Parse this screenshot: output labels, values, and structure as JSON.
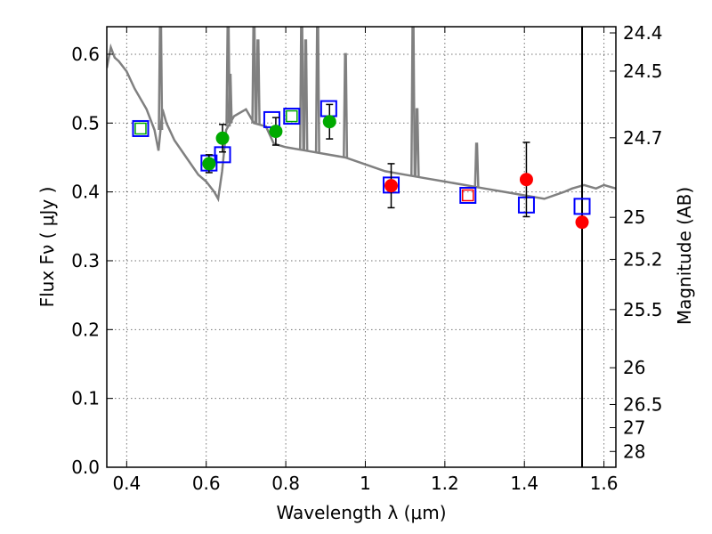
{
  "chart_data": {
    "type": "scatter",
    "xlabel": "Wavelength  λ (μm)",
    "ylabel": "Flux  Fν  ( μJy )",
    "y2label": "Magnitude (AB)",
    "xlim": [
      0.35,
      1.63
    ],
    "ylim": [
      0.0,
      0.64
    ],
    "grid": true,
    "x_ticks": [
      "0.4",
      "0.6",
      "0.8",
      "1",
      "1.2",
      "1.4",
      "1.6"
    ],
    "y_ticks": [
      "0.0",
      "0.1",
      "0.2",
      "0.3",
      "0.4",
      "0.5",
      "0.6"
    ],
    "magnitude_ticks": [
      "24.4",
      "24.5",
      "24.7",
      "25",
      "25.2",
      "25.5",
      "26",
      "26.5",
      "27",
      "28"
    ],
    "vertical_line_x": 1.545,
    "colors": {
      "sed_model": "#808080",
      "model_box": "#0000ff",
      "green_point": "#00aa00",
      "red_point": "#ff0000",
      "errorbar": "#000000"
    },
    "model_sed": {
      "name": "",
      "x": [
        0.35,
        0.36,
        0.37,
        0.38,
        0.4,
        0.42,
        0.45,
        0.47,
        0.48,
        0.49,
        0.5,
        0.52,
        0.55,
        0.58,
        0.6,
        0.62,
        0.63,
        0.64,
        0.65,
        0.67,
        0.7,
        0.72,
        0.75,
        0.77,
        0.8,
        0.85,
        0.9,
        0.95,
        1.0,
        1.05,
        1.1,
        1.15,
        1.2,
        1.25,
        1.3,
        1.35,
        1.4,
        1.45,
        1.5,
        1.52,
        1.55,
        1.58,
        1.6,
        1.63
      ],
      "values": [
        0.58,
        0.61,
        0.595,
        0.59,
        0.575,
        0.55,
        0.52,
        0.49,
        0.46,
        0.52,
        0.5,
        0.475,
        0.45,
        0.425,
        0.415,
        0.4,
        0.39,
        0.43,
        0.49,
        0.51,
        0.52,
        0.5,
        0.495,
        0.47,
        0.465,
        0.46,
        0.455,
        0.45,
        0.44,
        0.43,
        0.425,
        0.42,
        0.415,
        0.41,
        0.405,
        0.4,
        0.395,
        0.39,
        0.4,
        0.405,
        0.41,
        0.405,
        0.41,
        0.405
      ]
    },
    "emission_spikes": [
      {
        "x": 0.485,
        "peak": 0.64
      },
      {
        "x": 0.655,
        "peak": 0.64
      },
      {
        "x": 0.66,
        "peak": 0.55
      },
      {
        "x": 0.72,
        "peak": 0.64
      },
      {
        "x": 0.73,
        "peak": 0.6
      },
      {
        "x": 0.84,
        "peak": 0.64
      },
      {
        "x": 0.85,
        "peak": 0.6
      },
      {
        "x": 0.88,
        "peak": 0.64
      },
      {
        "x": 0.95,
        "peak": 0.58
      },
      {
        "x": 1.12,
        "peak": 0.64
      },
      {
        "x": 1.13,
        "peak": 0.5
      },
      {
        "x": 1.28,
        "peak": 0.45
      }
    ],
    "model_boxes": {
      "x": [
        0.435,
        0.607,
        0.641,
        0.765,
        0.815,
        0.908,
        1.065,
        1.258,
        1.405,
        1.545
      ],
      "values": [
        0.492,
        0.442,
        0.454,
        0.505,
        0.51,
        0.521,
        0.41,
        0.395,
        0.381,
        0.379
      ]
    },
    "green_points": {
      "x": [
        0.607,
        0.641,
        0.775,
        0.91
      ],
      "values": [
        0.441,
        0.478,
        0.488,
        0.502
      ],
      "err": [
        0.013,
        0.02,
        0.02,
        0.025
      ]
    },
    "red_points": {
      "x": [
        1.065,
        1.405,
        1.545
      ],
      "values": [
        0.409,
        0.418,
        0.356
      ],
      "err": [
        0.032,
        0.054,
        0.0
      ]
    },
    "red_inner_box": {
      "x": 1.258,
      "value": 0.395
    }
  }
}
